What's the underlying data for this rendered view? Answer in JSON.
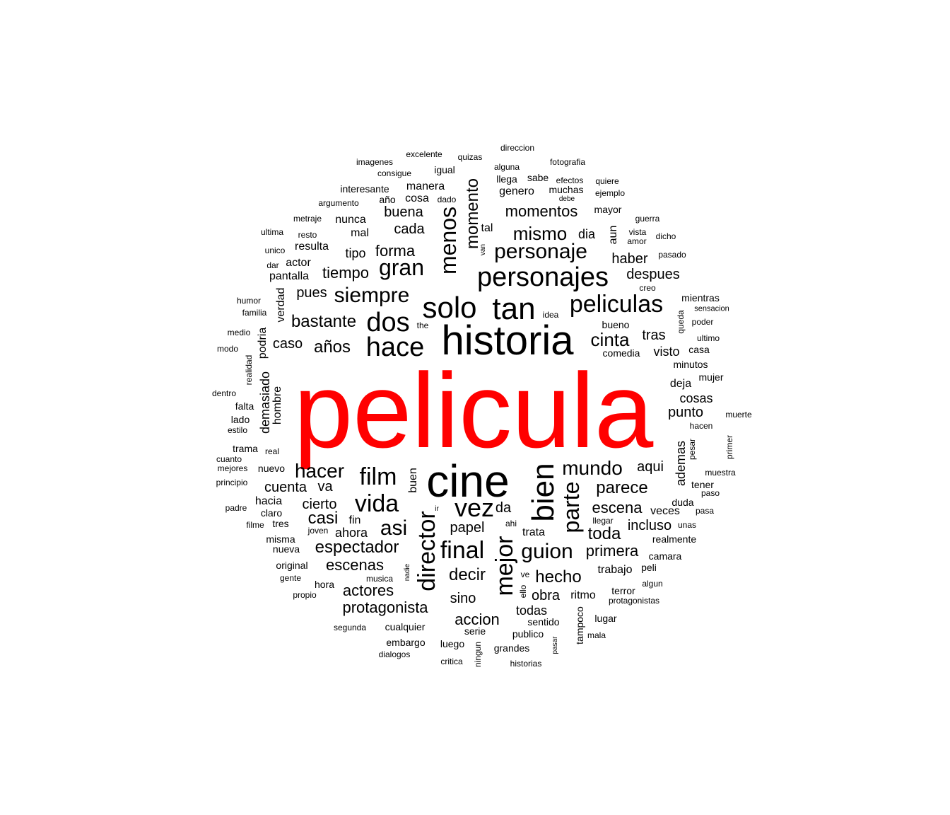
{
  "cloud": {
    "colors": {
      "top_word": "#ff0000",
      "default": "#000000",
      "background": "#ffffff"
    },
    "words": [
      {
        "text": "pelicula"
      },
      {
        "text": "cine"
      },
      {
        "text": "historia"
      },
      {
        "text": "tan"
      },
      {
        "text": "solo"
      },
      {
        "text": "personajes"
      },
      {
        "text": "bien"
      },
      {
        "text": "peliculas"
      },
      {
        "text": "hace"
      },
      {
        "text": "dos"
      },
      {
        "text": "vez"
      },
      {
        "text": "film"
      },
      {
        "text": "vida"
      },
      {
        "text": "final"
      },
      {
        "text": "guion"
      },
      {
        "text": "director"
      },
      {
        "text": "mejor"
      },
      {
        "text": "parte"
      },
      {
        "text": "personaje"
      },
      {
        "text": "menos"
      },
      {
        "text": "gran"
      },
      {
        "text": "siempre"
      },
      {
        "text": "mundo"
      },
      {
        "text": "asi"
      },
      {
        "text": "hacer"
      },
      {
        "text": "momentos"
      },
      {
        "text": "mismo"
      },
      {
        "text": "momento"
      },
      {
        "text": "cinta"
      },
      {
        "text": "parece"
      },
      {
        "text": "espectador"
      },
      {
        "text": "bastante"
      },
      {
        "text": "años"
      },
      {
        "text": "tiempo"
      },
      {
        "text": "escena"
      },
      {
        "text": "hecho"
      },
      {
        "text": "decir"
      },
      {
        "text": "toda"
      },
      {
        "text": "casi"
      },
      {
        "text": "protagonista"
      },
      {
        "text": "primera"
      },
      {
        "text": "escenas"
      },
      {
        "text": "actores"
      },
      {
        "text": "forma"
      },
      {
        "text": "despues"
      },
      {
        "text": "pues"
      },
      {
        "text": "caso"
      },
      {
        "text": "haber"
      },
      {
        "text": "aqui"
      },
      {
        "text": "tras"
      },
      {
        "text": "accion"
      },
      {
        "text": "papel"
      },
      {
        "text": "cuenta"
      },
      {
        "text": "incluso"
      },
      {
        "text": "ahora"
      },
      {
        "text": "buena"
      },
      {
        "text": "cada"
      },
      {
        "text": "cierto"
      },
      {
        "text": "va"
      },
      {
        "text": "da"
      },
      {
        "text": "tipo"
      },
      {
        "text": "obra"
      },
      {
        "text": "sino"
      },
      {
        "text": "todas"
      },
      {
        "text": "demasiado"
      },
      {
        "text": "podria"
      },
      {
        "text": "hombre"
      },
      {
        "text": "verdad"
      },
      {
        "text": "ademas"
      },
      {
        "text": "punto"
      },
      {
        "text": "cosas"
      },
      {
        "text": "visto"
      },
      {
        "text": "deja"
      },
      {
        "text": "trata"
      },
      {
        "text": "veces"
      },
      {
        "text": "tal"
      },
      {
        "text": "dia"
      },
      {
        "text": "aun"
      },
      {
        "text": "buen"
      },
      {
        "text": "ritmo"
      },
      {
        "text": "trabajo"
      },
      {
        "text": "nunca"
      },
      {
        "text": "mal"
      },
      {
        "text": "resulta"
      },
      {
        "text": "actor"
      },
      {
        "text": "pantalla"
      },
      {
        "text": "interesante"
      },
      {
        "text": "manera"
      },
      {
        "text": "genero"
      },
      {
        "text": "cosa"
      },
      {
        "text": "muchas"
      },
      {
        "text": "llega"
      },
      {
        "text": "sabe"
      },
      {
        "text": "igual"
      },
      {
        "text": "comedia"
      },
      {
        "text": "bueno"
      },
      {
        "text": "minutos"
      },
      {
        "text": "mientras"
      },
      {
        "text": "casa"
      },
      {
        "text": "mujer"
      },
      {
        "text": "trama"
      },
      {
        "text": "lado"
      },
      {
        "text": "falta"
      },
      {
        "text": "nuevo"
      },
      {
        "text": "hacia"
      },
      {
        "text": "claro"
      },
      {
        "text": "tres"
      },
      {
        "text": "misma"
      },
      {
        "text": "nueva"
      },
      {
        "text": "original"
      },
      {
        "text": "hora"
      },
      {
        "text": "fin"
      },
      {
        "text": "cualquier"
      },
      {
        "text": "embargo"
      },
      {
        "text": "luego"
      },
      {
        "text": "serie"
      },
      {
        "text": "grandes"
      },
      {
        "text": "publico"
      },
      {
        "text": "sentido"
      },
      {
        "text": "lugar"
      },
      {
        "text": "tampoco"
      },
      {
        "text": "terror"
      },
      {
        "text": "peli"
      },
      {
        "text": "camara"
      },
      {
        "text": "realmente"
      },
      {
        "text": "duda"
      },
      {
        "text": "tener"
      },
      {
        "text": "queda"
      },
      {
        "text": "pesar"
      },
      {
        "text": "mayor"
      },
      {
        "text": "realidad"
      },
      {
        "text": "año"
      },
      {
        "text": "efectos"
      },
      {
        "text": "quiere"
      },
      {
        "text": "ejemplo"
      },
      {
        "text": "direccion"
      },
      {
        "text": "fotografia"
      },
      {
        "text": "alguna"
      },
      {
        "text": "imagenes"
      },
      {
        "text": "excelente"
      },
      {
        "text": "quizas"
      },
      {
        "text": "consigue"
      },
      {
        "text": "argumento"
      },
      {
        "text": "dado"
      },
      {
        "text": "debe"
      },
      {
        "text": "metraje"
      },
      {
        "text": "ultima"
      },
      {
        "text": "resto"
      },
      {
        "text": "unico"
      },
      {
        "text": "dar"
      },
      {
        "text": "humor"
      },
      {
        "text": "familia"
      },
      {
        "text": "medio"
      },
      {
        "text": "modo"
      },
      {
        "text": "dentro"
      },
      {
        "text": "estilo"
      },
      {
        "text": "real"
      },
      {
        "text": "cuanto"
      },
      {
        "text": "mejores"
      },
      {
        "text": "principio"
      },
      {
        "text": "padre"
      },
      {
        "text": "filme"
      },
      {
        "text": "joven"
      },
      {
        "text": "gente"
      },
      {
        "text": "propio"
      },
      {
        "text": "musica"
      },
      {
        "text": "segunda"
      },
      {
        "text": "dialogos"
      },
      {
        "text": "critica"
      },
      {
        "text": "historias"
      },
      {
        "text": "mala"
      },
      {
        "text": "protagonistas"
      },
      {
        "text": "algun"
      },
      {
        "text": "ahi"
      },
      {
        "text": "llegar"
      },
      {
        "text": "unas"
      },
      {
        "text": "pasa"
      },
      {
        "text": "paso"
      },
      {
        "text": "muestra"
      },
      {
        "text": "hacen"
      },
      {
        "text": "muerte"
      },
      {
        "text": "primer"
      },
      {
        "text": "ultimo"
      },
      {
        "text": "poder"
      },
      {
        "text": "sensacion"
      },
      {
        "text": "creo"
      },
      {
        "text": "pasado"
      },
      {
        "text": "dicho"
      },
      {
        "text": "amor"
      },
      {
        "text": "vista"
      },
      {
        "text": "guerra"
      },
      {
        "text": "idea"
      },
      {
        "text": "the"
      },
      {
        "text": "ir"
      },
      {
        "text": "van"
      },
      {
        "text": "nadie"
      },
      {
        "text": "ve"
      },
      {
        "text": "ello"
      },
      {
        "text": "ningun"
      },
      {
        "text": "pasar"
      }
    ]
  }
}
